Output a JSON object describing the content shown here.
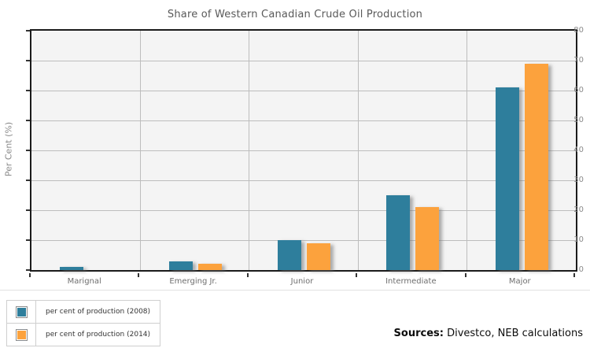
{
  "title": "Share of Western Canadian Crude Oil Production",
  "sources": {
    "label": "Sources:",
    "text": " Divestco, NEB calculations"
  },
  "colors": {
    "series_2008": "#2E7E9C",
    "series_2014": "#FCA23D",
    "plot_background": "#f4f4f4",
    "grid": "#bdbdbd",
    "plot_border": "#1b1b1b"
  },
  "chart_data": {
    "type": "bar",
    "title": "Share of Western Canadian Crude Oil Production",
    "xlabel": "",
    "ylabel": "Per Cent (%)",
    "categories": [
      "Marignal",
      "Emerging Jr.",
      "Junior",
      "Intermediate",
      "Major"
    ],
    "series": [
      {
        "name": "per cent of production (2008)",
        "color": "#2E7E9C",
        "values": [
          1,
          3,
          10,
          25,
          61
        ]
      },
      {
        "name": "per cent of production (2014)",
        "color": "#FCA23D",
        "values": [
          0,
          2,
          9,
          21,
          69
        ]
      }
    ],
    "ylim": [
      0,
      80
    ],
    "ytick_step": 10,
    "grid": true,
    "legend_position": "bottom-left",
    "legend_labels": [
      "per cent of production (2008)",
      "per cent of production (2014)"
    ]
  }
}
